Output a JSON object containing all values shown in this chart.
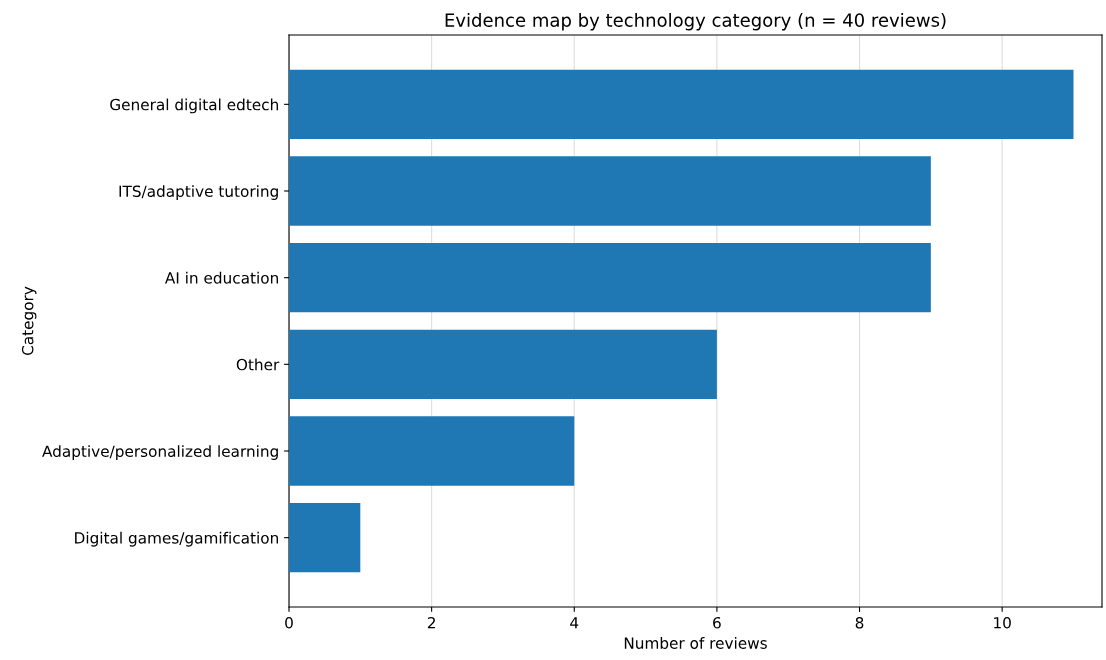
{
  "chart_data": {
    "type": "bar",
    "orientation": "horizontal",
    "title": "Evidence map by technology category (n = 40 reviews)",
    "xlabel": "Number of reviews",
    "ylabel": "Category",
    "categories": [
      "General digital edtech",
      "ITS/adaptive tutoring",
      "AI in education",
      "Other",
      "Adaptive/personalized learning",
      "Digital games/gamification"
    ],
    "values": [
      11,
      9,
      9,
      6,
      4,
      1
    ],
    "color": "#1f77b4",
    "xlim": [
      0,
      11.4
    ],
    "xticks": [
      0,
      2,
      4,
      6,
      8,
      10
    ],
    "grid": "x"
  }
}
